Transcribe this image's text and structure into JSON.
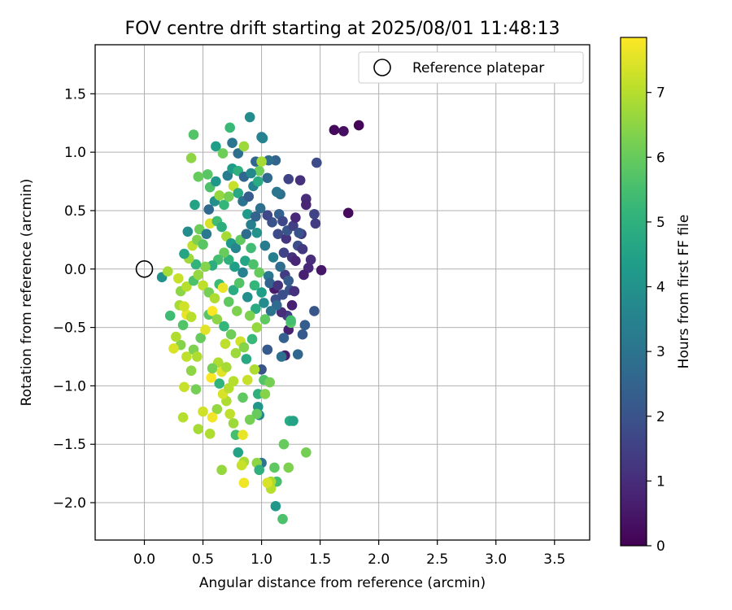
{
  "chart_data": {
    "type": "scatter",
    "title": "FOV centre drift starting at 2025/08/01 11:48:13",
    "xlabel": "Angular distance from reference (arcmin)",
    "ylabel": "Rotation from reference (arcmin)",
    "xlim": [
      -0.42,
      3.8
    ],
    "ylim": [
      -2.32,
      1.92
    ],
    "xticks": [
      "0.0",
      "0.5",
      "1.0",
      "1.5",
      "2.0",
      "2.5",
      "3.0",
      "3.5"
    ],
    "xtick_values": [
      0,
      0.5,
      1.0,
      1.5,
      2.0,
      2.5,
      3.0,
      3.5
    ],
    "yticks": [
      "1.5",
      "1.0",
      "0.5",
      "0.0",
      "−0.5",
      "−1.0",
      "−1.5",
      "−2.0"
    ],
    "ytick_values": [
      1.5,
      1.0,
      0.5,
      0.0,
      -0.5,
      -1.0,
      -1.5,
      -2.0
    ],
    "grid": true,
    "legend": {
      "placement": "upper-right",
      "label": "Reference platepar",
      "marker": "open-circle"
    },
    "reference_point": {
      "x": 0.0,
      "y": 0.0
    },
    "colorbar": {
      "label": "Hours from first FF file",
      "colormap": "viridis",
      "range": [
        0,
        7.85
      ],
      "ticks": [
        "0",
        "1",
        "2",
        "3",
        "4",
        "5",
        "6",
        "7"
      ],
      "tick_values": [
        0,
        1,
        2,
        3,
        4,
        5,
        6,
        7
      ]
    },
    "points": [
      {
        "x": 1.62,
        "y": 1.19,
        "t": 0.2
      },
      {
        "x": 1.7,
        "y": 1.18,
        "t": 0.3
      },
      {
        "x": 1.83,
        "y": 1.23,
        "t": 0.1
      },
      {
        "x": 1.74,
        "y": 0.48,
        "t": 0.2
      },
      {
        "x": 1.47,
        "y": 0.91,
        "t": 1.8
      },
      {
        "x": 1.38,
        "y": 0.6,
        "t": 1.0
      },
      {
        "x": 1.38,
        "y": 0.55,
        "t": 0.8
      },
      {
        "x": 1.33,
        "y": 0.76,
        "t": 1.1
      },
      {
        "x": 1.45,
        "y": 0.47,
        "t": 1.6
      },
      {
        "x": 1.46,
        "y": 0.39,
        "t": 1.4
      },
      {
        "x": 1.42,
        "y": 0.08,
        "t": 1.0
      },
      {
        "x": 1.51,
        "y": -0.01,
        "t": 0.5
      },
      {
        "x": 1.4,
        "y": 0.01,
        "t": 0.9
      },
      {
        "x": 1.36,
        "y": -0.05,
        "t": 0.7
      },
      {
        "x": 1.34,
        "y": 0.3,
        "t": 1.3
      },
      {
        "x": 1.31,
        "y": 0.2,
        "t": 1.9
      },
      {
        "x": 1.45,
        "y": -0.36,
        "t": 2.1
      },
      {
        "x": 1.37,
        "y": -0.48,
        "t": 2.3
      },
      {
        "x": 1.35,
        "y": -0.56,
        "t": 2.2
      },
      {
        "x": 1.31,
        "y": -0.73,
        "t": 2.6
      },
      {
        "x": 1.23,
        "y": 0.77,
        "t": 1.6
      },
      {
        "x": 1.22,
        "y": -0.4,
        "t": 1.5
      },
      {
        "x": 1.23,
        "y": -0.52,
        "t": 0.7
      },
      {
        "x": 1.2,
        "y": -0.74,
        "t": 0.6
      },
      {
        "x": 1.25,
        "y": -0.46,
        "t": 5.8
      },
      {
        "x": 1.19,
        "y": -0.59,
        "t": 2.4
      },
      {
        "x": 1.16,
        "y": 0.64,
        "t": 2.9
      },
      {
        "x": 1.12,
        "y": 0.93,
        "t": 2.5
      },
      {
        "x": 1.06,
        "y": 0.93,
        "t": 2.8
      },
      {
        "x": 1.13,
        "y": 0.66,
        "t": 3.1
      },
      {
        "x": 1.05,
        "y": 0.78,
        "t": 2.7
      },
      {
        "x": 1.09,
        "y": 0.4,
        "t": 2.0
      },
      {
        "x": 1.14,
        "y": 0.3,
        "t": 1.8
      },
      {
        "x": 1.21,
        "y": 0.26,
        "t": 1.2
      },
      {
        "x": 1.26,
        "y": 0.1,
        "t": 1.1
      },
      {
        "x": 1.2,
        "y": -0.05,
        "t": 1.4
      },
      {
        "x": 1.24,
        "y": -0.18,
        "t": 2.0
      },
      {
        "x": 1.11,
        "y": -0.17,
        "t": 0.6
      },
      {
        "x": 1.12,
        "y": -0.26,
        "t": 1.9
      },
      {
        "x": 1.17,
        "y": -0.37,
        "t": 1.0
      },
      {
        "x": 1.05,
        "y": -0.69,
        "t": 2.2
      },
      {
        "x": 1.0,
        "y": -0.86,
        "t": 2.1
      },
      {
        "x": 1.02,
        "y": -0.95,
        "t": 5.7
      },
      {
        "x": 0.97,
        "y": -1.07,
        "t": 5.0
      },
      {
        "x": 1.07,
        "y": -0.97,
        "t": 6.2
      },
      {
        "x": 1.03,
        "y": -1.07,
        "t": 6.4
      },
      {
        "x": 1.01,
        "y": 1.12,
        "t": 3.6
      },
      {
        "x": 0.9,
        "y": 1.3,
        "t": 3.8
      },
      {
        "x": 0.95,
        "y": 0.92,
        "t": 2.6
      },
      {
        "x": 0.98,
        "y": 0.84,
        "t": 6.1
      },
      {
        "x": 1.0,
        "y": 0.92,
        "t": 6.8
      },
      {
        "x": 0.93,
        "y": 0.71,
        "t": 3.5
      },
      {
        "x": 0.88,
        "y": 0.47,
        "t": 4.2
      },
      {
        "x": 0.99,
        "y": 0.52,
        "t": 2.9
      },
      {
        "x": 1.05,
        "y": 0.46,
        "t": 1.7
      },
      {
        "x": 0.96,
        "y": 0.31,
        "t": 4.0
      },
      {
        "x": 1.03,
        "y": 0.2,
        "t": 3.3
      },
      {
        "x": 0.91,
        "y": 0.18,
        "t": 5.4
      },
      {
        "x": 0.86,
        "y": 0.07,
        "t": 4.6
      },
      {
        "x": 0.93,
        "y": 0.04,
        "t": 5.6
      },
      {
        "x": 0.98,
        "y": -0.03,
        "t": 6.0
      },
      {
        "x": 1.06,
        "y": -0.06,
        "t": 3.2
      },
      {
        "x": 0.94,
        "y": -0.14,
        "t": 5.2
      },
      {
        "x": 1.0,
        "y": -0.2,
        "t": 4.4
      },
      {
        "x": 0.88,
        "y": -0.24,
        "t": 3.9
      },
      {
        "x": 0.95,
        "y": -0.34,
        "t": 4.8
      },
      {
        "x": 1.03,
        "y": -0.43,
        "t": 5.9
      },
      {
        "x": 0.9,
        "y": -0.4,
        "t": 6.3
      },
      {
        "x": 0.96,
        "y": -0.5,
        "t": 6.6
      },
      {
        "x": 0.92,
        "y": -0.6,
        "t": 5.3
      },
      {
        "x": 0.87,
        "y": -0.77,
        "t": 4.7
      },
      {
        "x": 0.94,
        "y": -0.86,
        "t": 6.9
      },
      {
        "x": 0.88,
        "y": -0.95,
        "t": 7.2
      },
      {
        "x": 0.84,
        "y": -1.1,
        "t": 5.9
      },
      {
        "x": 0.97,
        "y": -1.18,
        "t": 4.1
      },
      {
        "x": 0.98,
        "y": -1.25,
        "t": 3.6
      },
      {
        "x": 0.9,
        "y": -1.29,
        "t": 6.2
      },
      {
        "x": 1.0,
        "y": -1.66,
        "t": 3.1
      },
      {
        "x": 0.96,
        "y": -1.66,
        "t": 6.5
      },
      {
        "x": 0.85,
        "y": -1.65,
        "t": 6.8
      },
      {
        "x": 0.8,
        "y": -1.57,
        "t": 4.5
      },
      {
        "x": 0.78,
        "y": -1.42,
        "t": 5.5
      },
      {
        "x": 0.84,
        "y": -1.42,
        "t": 7.6
      },
      {
        "x": 0.76,
        "y": -1.32,
        "t": 6.7
      },
      {
        "x": 0.73,
        "y": -1.24,
        "t": 7.1
      },
      {
        "x": 0.7,
        "y": -1.13,
        "t": 6.9
      },
      {
        "x": 0.67,
        "y": -1.07,
        "t": 7.4
      },
      {
        "x": 0.72,
        "y": -1.02,
        "t": 7.0
      },
      {
        "x": 0.64,
        "y": -0.98,
        "t": 5.1
      },
      {
        "x": 0.57,
        "y": -0.93,
        "t": 7.8
      },
      {
        "x": 0.62,
        "y": -1.2,
        "t": 6.6
      },
      {
        "x": 0.58,
        "y": -1.27,
        "t": 7.7
      },
      {
        "x": 0.56,
        "y": -1.41,
        "t": 6.9
      },
      {
        "x": 0.5,
        "y": -1.22,
        "t": 7.3
      },
      {
        "x": 0.46,
        "y": -1.37,
        "t": 6.8
      },
      {
        "x": 0.44,
        "y": -1.03,
        "t": 6.2
      },
      {
        "x": 0.33,
        "y": -1.27,
        "t": 7.0
      },
      {
        "x": 0.34,
        "y": -1.01,
        "t": 7.2
      },
      {
        "x": 0.4,
        "y": -0.87,
        "t": 6.5
      },
      {
        "x": 0.36,
        "y": -0.75,
        "t": 7.1
      },
      {
        "x": 0.31,
        "y": -0.65,
        "t": 6.4
      },
      {
        "x": 0.25,
        "y": -0.68,
        "t": 7.4
      },
      {
        "x": 0.27,
        "y": -0.58,
        "t": 6.9
      },
      {
        "x": 0.33,
        "y": -0.48,
        "t": 5.7
      },
      {
        "x": 0.36,
        "y": -0.39,
        "t": 7.6
      },
      {
        "x": 0.3,
        "y": -0.31,
        "t": 6.8
      },
      {
        "x": 0.34,
        "y": -0.32,
        "t": 7.3
      },
      {
        "x": 0.4,
        "y": -0.41,
        "t": 7.0
      },
      {
        "x": 0.42,
        "y": -0.69,
        "t": 6.3
      },
      {
        "x": 0.45,
        "y": -0.75,
        "t": 6.9
      },
      {
        "x": 0.48,
        "y": -0.59,
        "t": 6.0
      },
      {
        "x": 0.52,
        "y": -0.52,
        "t": 7.5
      },
      {
        "x": 0.55,
        "y": -0.39,
        "t": 5.8
      },
      {
        "x": 0.58,
        "y": -0.36,
        "t": 7.8
      },
      {
        "x": 0.62,
        "y": -0.43,
        "t": 6.5
      },
      {
        "x": 0.68,
        "y": -0.49,
        "t": 5.2
      },
      {
        "x": 0.74,
        "y": -0.56,
        "t": 6.1
      },
      {
        "x": 0.69,
        "y": -0.64,
        "t": 7.1
      },
      {
        "x": 0.78,
        "y": -0.72,
        "t": 6.7
      },
      {
        "x": 0.82,
        "y": -0.62,
        "t": 7.3
      },
      {
        "x": 0.85,
        "y": -0.67,
        "t": 6.4
      },
      {
        "x": 0.63,
        "y": -0.8,
        "t": 6.9
      },
      {
        "x": 0.58,
        "y": -0.85,
        "t": 6.2
      },
      {
        "x": 0.66,
        "y": -0.88,
        "t": 7.5
      },
      {
        "x": 0.76,
        "y": -0.96,
        "t": 7.0
      },
      {
        "x": 0.7,
        "y": -0.84,
        "t": 6.8
      },
      {
        "x": 0.22,
        "y": -0.4,
        "t": 5.4
      },
      {
        "x": 0.15,
        "y": -0.07,
        "t": 4.0
      },
      {
        "x": 0.2,
        "y": -0.02,
        "t": 6.8
      },
      {
        "x": 0.29,
        "y": -0.08,
        "t": 7.2
      },
      {
        "x": 0.31,
        "y": -0.19,
        "t": 6.5
      },
      {
        "x": 0.36,
        "y": -0.15,
        "t": 7.0
      },
      {
        "x": 0.42,
        "y": -0.1,
        "t": 5.6
      },
      {
        "x": 0.46,
        "y": -0.05,
        "t": 6.6
      },
      {
        "x": 0.5,
        "y": -0.14,
        "t": 7.1
      },
      {
        "x": 0.55,
        "y": -0.2,
        "t": 6.2
      },
      {
        "x": 0.6,
        "y": -0.25,
        "t": 6.9
      },
      {
        "x": 0.64,
        "y": -0.13,
        "t": 5.3
      },
      {
        "x": 0.67,
        "y": -0.16,
        "t": 7.6
      },
      {
        "x": 0.72,
        "y": -0.28,
        "t": 5.9
      },
      {
        "x": 0.79,
        "y": -0.36,
        "t": 6.3
      },
      {
        "x": 0.76,
        "y": -0.18,
        "t": 4.8
      },
      {
        "x": 0.81,
        "y": -0.12,
        "t": 5.7
      },
      {
        "x": 0.84,
        "y": -0.03,
        "t": 3.5
      },
      {
        "x": 0.77,
        "y": 0.02,
        "t": 4.4
      },
      {
        "x": 0.72,
        "y": 0.08,
        "t": 5.0
      },
      {
        "x": 0.68,
        "y": 0.14,
        "t": 6.0
      },
      {
        "x": 0.63,
        "y": 0.08,
        "t": 5.5
      },
      {
        "x": 0.58,
        "y": 0.03,
        "t": 4.9
      },
      {
        "x": 0.52,
        "y": 0.02,
        "t": 6.4
      },
      {
        "x": 0.44,
        "y": 0.04,
        "t": 5.1
      },
      {
        "x": 0.38,
        "y": 0.09,
        "t": 6.7
      },
      {
        "x": 0.34,
        "y": 0.13,
        "t": 4.6
      },
      {
        "x": 0.41,
        "y": 0.2,
        "t": 7.1
      },
      {
        "x": 0.45,
        "y": 0.25,
        "t": 6.3
      },
      {
        "x": 0.5,
        "y": 0.21,
        "t": 5.8
      },
      {
        "x": 0.37,
        "y": 0.32,
        "t": 3.8
      },
      {
        "x": 0.47,
        "y": 0.34,
        "t": 6.1
      },
      {
        "x": 0.53,
        "y": 0.3,
        "t": 3.2
      },
      {
        "x": 0.56,
        "y": 0.39,
        "t": 7.4
      },
      {
        "x": 0.62,
        "y": 0.41,
        "t": 5.4
      },
      {
        "x": 0.66,
        "y": 0.36,
        "t": 4.9
      },
      {
        "x": 0.7,
        "y": 0.28,
        "t": 6.8
      },
      {
        "x": 0.74,
        "y": 0.22,
        "t": 4.2
      },
      {
        "x": 0.78,
        "y": 0.18,
        "t": 3.6
      },
      {
        "x": 0.82,
        "y": 0.25,
        "t": 5.9
      },
      {
        "x": 0.87,
        "y": 0.3,
        "t": 2.8
      },
      {
        "x": 0.91,
        "y": 0.38,
        "t": 3.4
      },
      {
        "x": 0.95,
        "y": 0.45,
        "t": 2.5
      },
      {
        "x": 0.43,
        "y": 0.55,
        "t": 4.5
      },
      {
        "x": 0.55,
        "y": 0.51,
        "t": 2.7
      },
      {
        "x": 0.6,
        "y": 0.58,
        "t": 3.9
      },
      {
        "x": 0.64,
        "y": 0.63,
        "t": 6.6
      },
      {
        "x": 0.68,
        "y": 0.55,
        "t": 5.2
      },
      {
        "x": 0.72,
        "y": 0.62,
        "t": 6.2
      },
      {
        "x": 0.76,
        "y": 0.71,
        "t": 7.2
      },
      {
        "x": 0.8,
        "y": 0.65,
        "t": 4.7
      },
      {
        "x": 0.84,
        "y": 0.58,
        "t": 3.0
      },
      {
        "x": 0.89,
        "y": 0.62,
        "t": 2.3
      },
      {
        "x": 0.56,
        "y": 0.7,
        "t": 5.6
      },
      {
        "x": 0.61,
        "y": 0.75,
        "t": 4.1
      },
      {
        "x": 0.71,
        "y": 0.8,
        "t": 3.3
      },
      {
        "x": 0.75,
        "y": 0.86,
        "t": 4.3
      },
      {
        "x": 0.8,
        "y": 0.84,
        "t": 5.0
      },
      {
        "x": 0.85,
        "y": 0.79,
        "t": 2.6
      },
      {
        "x": 0.91,
        "y": 0.82,
        "t": 3.7
      },
      {
        "x": 0.54,
        "y": 0.81,
        "t": 5.8
      },
      {
        "x": 0.46,
        "y": 0.79,
        "t": 6.0
      },
      {
        "x": 0.4,
        "y": 0.95,
        "t": 6.5
      },
      {
        "x": 0.42,
        "y": 1.15,
        "t": 5.7
      },
      {
        "x": 0.61,
        "y": 1.05,
        "t": 4.4
      },
      {
        "x": 0.67,
        "y": 0.99,
        "t": 6.1
      },
      {
        "x": 0.73,
        "y": 1.21,
        "t": 5.3
      },
      {
        "x": 0.75,
        "y": 1.08,
        "t": 3.1
      },
      {
        "x": 0.8,
        "y": 0.99,
        "t": 2.9
      },
      {
        "x": 0.85,
        "y": 1.05,
        "t": 6.7
      },
      {
        "x": 1.0,
        "y": 1.13,
        "t": 3.5
      },
      {
        "x": 0.97,
        "y": 0.75,
        "t": 4.8
      },
      {
        "x": 1.15,
        "y": 0.47,
        "t": 2.4
      },
      {
        "x": 1.18,
        "y": 0.41,
        "t": 1.7
      },
      {
        "x": 1.22,
        "y": 0.33,
        "t": 2.1
      },
      {
        "x": 1.27,
        "y": 0.37,
        "t": 1.5
      },
      {
        "x": 1.29,
        "y": 0.44,
        "t": 0.9
      },
      {
        "x": 1.32,
        "y": 0.31,
        "t": 2.0
      },
      {
        "x": 1.35,
        "y": 0.17,
        "t": 1.3
      },
      {
        "x": 1.29,
        "y": 0.07,
        "t": 0.8
      },
      {
        "x": 1.19,
        "y": 0.14,
        "t": 1.6
      },
      {
        "x": 1.16,
        "y": 0.02,
        "t": 2.8
      },
      {
        "x": 1.1,
        "y": 0.1,
        "t": 3.4
      },
      {
        "x": 1.07,
        "y": -0.12,
        "t": 2.5
      },
      {
        "x": 1.14,
        "y": -0.14,
        "t": 1.2
      },
      {
        "x": 1.18,
        "y": -0.22,
        "t": 1.9
      },
      {
        "x": 1.13,
        "y": -0.31,
        "t": 2.7
      },
      {
        "x": 1.08,
        "y": -0.36,
        "t": 3.0
      },
      {
        "x": 1.02,
        "y": -0.29,
        "t": 3.8
      },
      {
        "x": 1.26,
        "y": -0.31,
        "t": 0.7
      },
      {
        "x": 1.28,
        "y": -0.19,
        "t": 1.1
      },
      {
        "x": 1.23,
        "y": -0.1,
        "t": 2.3
      },
      {
        "x": 1.24,
        "y": -1.3,
        "t": 4.8
      },
      {
        "x": 1.27,
        "y": -1.3,
        "t": 4.5
      },
      {
        "x": 1.19,
        "y": -1.5,
        "t": 6.0
      },
      {
        "x": 1.38,
        "y": -1.57,
        "t": 6.2
      },
      {
        "x": 1.23,
        "y": -1.7,
        "t": 6.3
      },
      {
        "x": 1.11,
        "y": -1.7,
        "t": 5.9
      },
      {
        "x": 1.13,
        "y": -1.82,
        "t": 5.5
      },
      {
        "x": 1.12,
        "y": -2.03,
        "t": 4.2
      },
      {
        "x": 1.18,
        "y": -2.14,
        "t": 5.6
      },
      {
        "x": 1.08,
        "y": -1.82,
        "t": 6.8
      },
      {
        "x": 1.08,
        "y": -1.88,
        "t": 7.0
      },
      {
        "x": 1.05,
        "y": -1.83,
        "t": 7.4
      },
      {
        "x": 0.85,
        "y": -1.83,
        "t": 7.7
      },
      {
        "x": 0.66,
        "y": -1.72,
        "t": 6.6
      },
      {
        "x": 0.83,
        "y": -1.68,
        "t": 7.2
      },
      {
        "x": 0.98,
        "y": -1.72,
        "t": 5.0
      },
      {
        "x": 0.96,
        "y": -1.24,
        "t": 6.0
      },
      {
        "x": 1.17,
        "y": -0.75,
        "t": 2.9
      },
      {
        "x": 1.25,
        "y": -0.44,
        "t": 5.5
      }
    ]
  }
}
